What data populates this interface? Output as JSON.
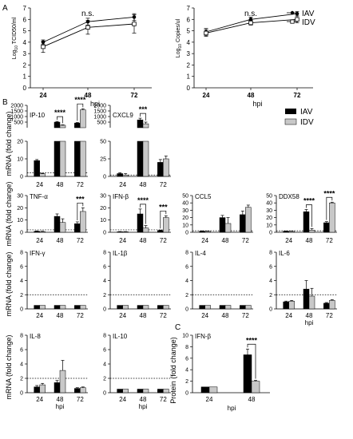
{
  "figure": {
    "panel_letters": [
      "A",
      "B",
      "C"
    ],
    "legend": {
      "iav": {
        "label": "IAV",
        "color": "#000000"
      },
      "idv": {
        "label": "IDV",
        "color": "#c8c8c8"
      }
    },
    "hpi": "hpi",
    "mrna_ylabel": "mRNA (fold change)",
    "protein_ylabel": "Protein (fold change)",
    "ns_label": "n.s.",
    "star4": "****",
    "star3": "***",
    "log_axis_labels": [
      "Log10 TCID50/ml",
      "Log10 Copies/ul"
    ]
  },
  "chart_data": [
    {
      "id": "A1",
      "type": "line",
      "panel": "A",
      "ylabel": "Log10 TCID50/ml",
      "xlabel": "hpi",
      "categories": [
        "24",
        "48",
        "72"
      ],
      "ylim": [
        0,
        7
      ],
      "yticks": [
        0,
        1,
        2,
        3,
        4,
        5,
        6,
        7
      ],
      "series": [
        {
          "name": "IAV",
          "values": [
            4.0,
            5.8,
            6.2
          ],
          "err": [
            0.2,
            0.3,
            0.3
          ],
          "marker": "circle"
        },
        {
          "name": "IDV",
          "values": [
            3.6,
            5.3,
            5.6
          ],
          "err": [
            0.5,
            0.6,
            0.8
          ],
          "marker": "square"
        }
      ],
      "annotation": {
        "text": "n.s.",
        "at": "48"
      }
    },
    {
      "id": "A2",
      "type": "line",
      "panel": "A",
      "ylabel": "Log10 Copies/ul",
      "xlabel": "hpi",
      "categories": [
        "24",
        "48",
        "72"
      ],
      "ylim": [
        0,
        7
      ],
      "yticks": [
        0,
        1,
        2,
        3,
        4,
        5,
        6,
        7
      ],
      "series": [
        {
          "name": "IAV",
          "values": [
            4.9,
            6.0,
            6.5
          ],
          "err": [
            0.3,
            0.2,
            0.2
          ],
          "marker": "circle"
        },
        {
          "name": "IDV",
          "values": [
            4.8,
            5.7,
            6.0
          ],
          "err": [
            0.3,
            0.2,
            0.3
          ],
          "marker": "square"
        }
      ],
      "legend": [
        "IAV",
        "IDV"
      ],
      "annotation": {
        "text": "n.s.",
        "at": "48"
      }
    },
    {
      "id": "IP10",
      "type": "bar",
      "panel": "B",
      "title": "IP-10",
      "broken": true,
      "categories": [
        "24",
        "48",
        "72"
      ],
      "lower_ylim": [
        0,
        20
      ],
      "lower_yticks": [
        0,
        10,
        20
      ],
      "upper_ylim": [
        0,
        2000
      ],
      "upper_yticks": [
        500,
        1000,
        1500,
        2000
      ],
      "series": [
        {
          "name": "IAV",
          "values": [
            9,
            500,
            420
          ],
          "err": [
            0.6,
            60,
            50
          ]
        },
        {
          "name": "IDV",
          "values": [
            1.5,
            220,
            1600
          ],
          "err": [
            0.3,
            40,
            100
          ]
        }
      ],
      "dotted": 2,
      "sig": [
        {
          "at": "48",
          "text": "****"
        },
        {
          "at": "72",
          "text": "****"
        }
      ]
    },
    {
      "id": "CXCL9",
      "type": "bar",
      "panel": "B",
      "title": "CXCL9",
      "broken": true,
      "categories": [
        "24",
        "48",
        "72"
      ],
      "lower_ylim": [
        0,
        50
      ],
      "lower_yticks": [
        0,
        25,
        50
      ],
      "upper_ylim": [
        0,
        2000
      ],
      "upper_yticks": [
        500,
        1000,
        1500,
        2000
      ],
      "series": [
        {
          "name": "IAV",
          "values": [
            4,
            700,
            20
          ],
          "err": [
            1.2,
            150,
            4
          ]
        },
        {
          "name": "IDV",
          "values": [
            2,
            350,
            25
          ],
          "err": [
            2,
            150,
            4
          ]
        }
      ],
      "dotted": 2,
      "sig": [
        {
          "at": "48",
          "text": "***"
        }
      ]
    },
    {
      "id": "TNF",
      "type": "bar",
      "panel": "B",
      "title": "TNF-α",
      "categories": [
        "24",
        "48",
        "72"
      ],
      "ylim": [
        0,
        30
      ],
      "yticks": [
        0,
        10,
        20,
        30
      ],
      "series": [
        {
          "name": "IAV",
          "values": [
            0.8,
            13,
            7
          ],
          "err": [
            0.3,
            2,
            1.5
          ]
        },
        {
          "name": "IDV",
          "values": [
            0.6,
            8,
            17
          ],
          "err": [
            0.3,
            3,
            3
          ]
        }
      ],
      "dotted": 2,
      "sig": [
        {
          "at": "72",
          "text": "***"
        }
      ]
    },
    {
      "id": "IFNB",
      "type": "bar",
      "panel": "B",
      "title": "IFN-β",
      "categories": [
        "24",
        "48",
        "72"
      ],
      "ylim": [
        0,
        30
      ],
      "yticks": [
        0,
        10,
        20,
        30
      ],
      "series": [
        {
          "name": "IAV",
          "values": [
            0.4,
            15,
            1.5
          ],
          "err": [
            0.2,
            4,
            0.3
          ]
        },
        {
          "name": "IDV",
          "values": [
            0.4,
            3.5,
            12
          ],
          "err": [
            0.2,
            2,
            1.5
          ]
        }
      ],
      "dotted": 2,
      "sig": [
        {
          "at": "48",
          "text": "****"
        },
        {
          "at": "72",
          "text": "***"
        }
      ]
    },
    {
      "id": "CCL5",
      "type": "bar",
      "panel": "B",
      "title": "CCL5",
      "categories": [
        "24",
        "48",
        "72"
      ],
      "ylim": [
        0,
        50
      ],
      "yticks": [
        0,
        10,
        20,
        30,
        40,
        50
      ],
      "series": [
        {
          "name": "IAV",
          "values": [
            1.5,
            20,
            24
          ],
          "err": [
            0.4,
            3,
            5
          ]
        },
        {
          "name": "IDV",
          "values": [
            1.2,
            12,
            34
          ],
          "err": [
            0.4,
            8,
            3
          ]
        }
      ],
      "dotted": 2
    },
    {
      "id": "DDX58",
      "type": "bar",
      "panel": "B",
      "title": "DDX58",
      "categories": [
        "24",
        "48",
        "72"
      ],
      "ylim": [
        0,
        50
      ],
      "yticks": [
        0,
        10,
        20,
        30,
        40,
        50
      ],
      "series": [
        {
          "name": "IAV",
          "values": [
            1.5,
            28,
            13
          ],
          "err": [
            0.3,
            3,
            1.5
          ]
        },
        {
          "name": "IDV",
          "values": [
            1.2,
            3,
            40
          ],
          "err": [
            0.3,
            2,
            1
          ]
        }
      ],
      "dotted": 2,
      "sig": [
        {
          "at": "48",
          "text": "****"
        },
        {
          "at": "72",
          "text": "****"
        }
      ]
    },
    {
      "id": "IFNG",
      "type": "bar",
      "panel": "B",
      "title": "IFN-γ",
      "categories": [
        "24",
        "48",
        "72"
      ],
      "ylim": [
        0,
        8
      ],
      "yticks": [
        0,
        2,
        4,
        6,
        8
      ],
      "series": [
        {
          "name": "IAV",
          "values": [
            0.5,
            0.5,
            0.5
          ],
          "err": [
            0,
            0,
            0
          ]
        },
        {
          "name": "IDV",
          "values": [
            0.5,
            0.5,
            0.5
          ],
          "err": [
            0,
            0,
            0
          ]
        }
      ],
      "dotted": 2
    },
    {
      "id": "IL1B",
      "type": "bar",
      "panel": "B",
      "title": "IL-1β",
      "categories": [
        "24",
        "48",
        "72"
      ],
      "ylim": [
        0,
        8
      ],
      "yticks": [
        0,
        2,
        4,
        6,
        8
      ],
      "series": [
        {
          "name": "IAV",
          "values": [
            0.5,
            0.5,
            0.5
          ],
          "err": [
            0,
            0,
            0
          ]
        },
        {
          "name": "IDV",
          "values": [
            0.5,
            0.5,
            0.5
          ],
          "err": [
            0,
            0,
            0
          ]
        }
      ],
      "dotted": 2
    },
    {
      "id": "IL4",
      "type": "bar",
      "panel": "B",
      "title": "IL-4",
      "categories": [
        "24",
        "48",
        "72"
      ],
      "ylim": [
        0,
        8
      ],
      "yticks": [
        0,
        2,
        4,
        6,
        8
      ],
      "series": [
        {
          "name": "IAV",
          "values": [
            0.5,
            0.5,
            0.5
          ],
          "err": [
            0,
            0,
            0
          ]
        },
        {
          "name": "IDV",
          "values": [
            0.5,
            0.5,
            0.5
          ],
          "err": [
            0,
            0,
            0
          ]
        }
      ],
      "dotted": 2
    },
    {
      "id": "IL6",
      "type": "bar",
      "panel": "B",
      "title": "IL-6",
      "xlabel": "hpi",
      "categories": [
        "24",
        "48",
        "72"
      ],
      "ylim": [
        0,
        8
      ],
      "yticks": [
        0,
        2,
        4,
        6,
        8
      ],
      "series": [
        {
          "name": "IAV",
          "values": [
            1.0,
            2.8,
            0.8
          ],
          "err": [
            0.1,
            1.2,
            0.1
          ]
        },
        {
          "name": "IDV",
          "values": [
            1.1,
            1.8,
            1.2
          ],
          "err": [
            0.1,
            1.1,
            0.1
          ]
        }
      ],
      "dotted": 2
    },
    {
      "id": "IL8",
      "type": "bar",
      "panel": "B",
      "title": "IL-8",
      "xlabel": "hpi",
      "categories": [
        "24",
        "48",
        "72"
      ],
      "ylim": [
        0,
        8
      ],
      "yticks": [
        0,
        2,
        4,
        6,
        8
      ],
      "series": [
        {
          "name": "IAV",
          "values": [
            0.8,
            1.4,
            0.6
          ],
          "err": [
            0.2,
            0.3,
            0.1
          ]
        },
        {
          "name": "IDV",
          "values": [
            1.1,
            3.1,
            0.7
          ],
          "err": [
            0.2,
            1.4,
            0.1
          ]
        }
      ],
      "dotted": 2
    },
    {
      "id": "IL10",
      "type": "bar",
      "panel": "B",
      "title": "IL-10",
      "xlabel": "hpi",
      "categories": [
        "24",
        "48",
        "72"
      ],
      "ylim": [
        0,
        8
      ],
      "yticks": [
        0,
        2,
        4,
        6,
        8
      ],
      "series": [
        {
          "name": "IAV",
          "values": [
            0.5,
            0.5,
            0.5
          ],
          "err": [
            0,
            0,
            0
          ]
        },
        {
          "name": "IDV",
          "values": [
            0.5,
            0.5,
            0.5
          ],
          "err": [
            0,
            0,
            0
          ]
        }
      ],
      "dotted": 2
    },
    {
      "id": "ProtIFNB",
      "type": "bar",
      "panel": "C",
      "title": "IFN-β",
      "xlabel": "hpi",
      "ylabel": "Protein (fold change)",
      "categories": [
        "24",
        "48"
      ],
      "ylim": [
        0,
        10
      ],
      "yticks": [
        0,
        2,
        4,
        6,
        8,
        10
      ],
      "series": [
        {
          "name": "IAV",
          "values": [
            1.0,
            6.6
          ],
          "err": [
            0,
            1.0
          ]
        },
        {
          "name": "IDV",
          "values": [
            1.0,
            2.0
          ],
          "err": [
            0,
            0.15
          ]
        }
      ],
      "sig": [
        {
          "at": "48",
          "text": "****"
        }
      ]
    }
  ]
}
